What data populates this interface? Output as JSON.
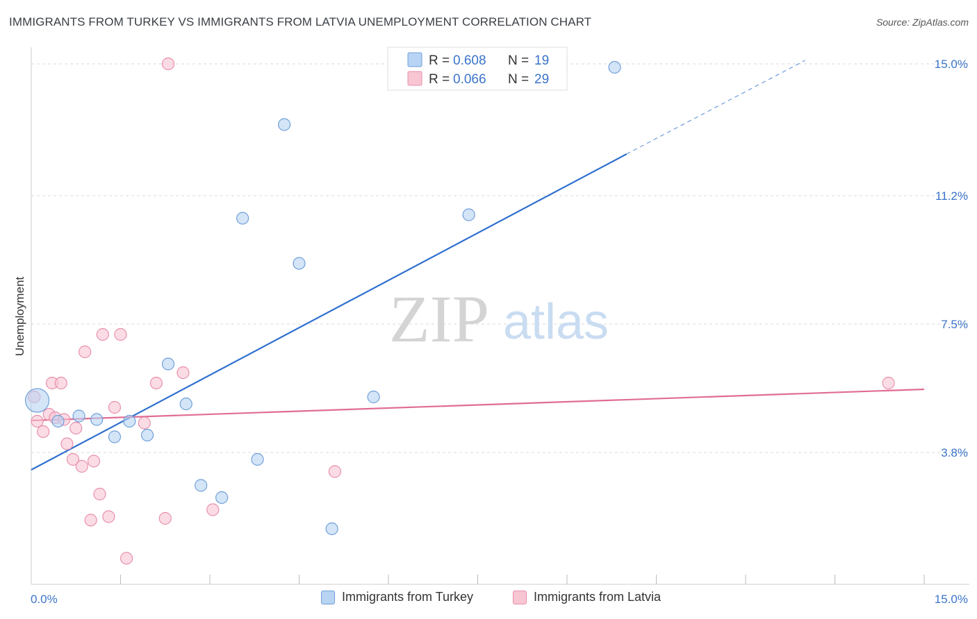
{
  "title": "IMMIGRANTS FROM TURKEY VS IMMIGRANTS FROM LATVIA UNEMPLOYMENT CORRELATION CHART",
  "source": "Source: ZipAtlas.com",
  "watermark": {
    "zip": "ZIP",
    "atlas": "atlas"
  },
  "colors": {
    "turkey_fill": "#b8d3f3",
    "turkey_stroke": "#6f9fd8",
    "turkey_line": "#2f6fcf",
    "latvia_fill": "#f8c5d3",
    "latvia_stroke": "#e88fab",
    "latvia_line": "#e06c94",
    "value_text": "#3b74c9",
    "grid": "#d9d9d9"
  },
  "legend_top": {
    "rows": [
      {
        "r_label": "R = ",
        "r_value": "0.608",
        "n_label": "N = ",
        "n_value": "19"
      },
      {
        "r_label": "R = ",
        "r_value": "0.066",
        "n_label": "N = ",
        "n_value": "29"
      }
    ]
  },
  "legend_bottom": [
    "Immigrants from Turkey",
    "Immigrants from Latvia"
  ],
  "chart_data": {
    "type": "scatter",
    "title": "IMMIGRANTS FROM TURKEY VS IMMIGRANTS FROM LATVIA UNEMPLOYMENT CORRELATION CHART",
    "xlabel": "",
    "ylabel": "Unemployment",
    "xlim": [
      0,
      15
    ],
    "ylim": [
      0,
      15.4
    ],
    "y_ticks": [
      3.8,
      7.5,
      11.2,
      15.0
    ],
    "y_tick_labels": [
      "3.8%",
      "7.5%",
      "11.2%",
      "15.0%"
    ],
    "x_tick_labels": [
      "0.0%",
      "15.0%"
    ],
    "x_minor_ticks": [
      1.5,
      3.0,
      4.5,
      6.0,
      7.5,
      9.0,
      10.5,
      12.0,
      13.5,
      15.0
    ],
    "grid": true,
    "series": [
      {
        "name": "Immigrants from Turkey",
        "r": 0.608,
        "n": 19,
        "points": [
          [
            0.1,
            5.3,
            "large"
          ],
          [
            0.45,
            4.7
          ],
          [
            0.8,
            4.85
          ],
          [
            1.1,
            4.75
          ],
          [
            1.4,
            4.25
          ],
          [
            1.65,
            4.7
          ],
          [
            1.95,
            4.3
          ],
          [
            2.3,
            6.35
          ],
          [
            2.6,
            5.2
          ],
          [
            2.85,
            2.85
          ],
          [
            3.2,
            2.5
          ],
          [
            3.55,
            10.55
          ],
          [
            3.8,
            3.6
          ],
          [
            4.25,
            13.25
          ],
          [
            4.5,
            9.25
          ],
          [
            5.05,
            1.6
          ],
          [
            5.75,
            5.4
          ],
          [
            7.35,
            10.65
          ],
          [
            9.8,
            14.9
          ]
        ],
        "trend": {
          "x0": 0.0,
          "y0": 3.3,
          "x1": 10.0,
          "y1": 12.4,
          "dashed_to_x": 13.0,
          "dashed_to_y": 15.1
        }
      },
      {
        "name": "Immigrants from Latvia",
        "r": 0.066,
        "n": 29,
        "points": [
          [
            0.05,
            5.4
          ],
          [
            0.1,
            4.7
          ],
          [
            0.2,
            4.4
          ],
          [
            0.3,
            4.9
          ],
          [
            0.35,
            5.8
          ],
          [
            0.4,
            4.8
          ],
          [
            0.5,
            5.8
          ],
          [
            0.55,
            4.75
          ],
          [
            0.6,
            4.05
          ],
          [
            0.7,
            3.6
          ],
          [
            0.75,
            4.5
          ],
          [
            0.85,
            3.4
          ],
          [
            0.9,
            6.7
          ],
          [
            1.0,
            1.85
          ],
          [
            1.05,
            3.55
          ],
          [
            1.15,
            2.6
          ],
          [
            1.2,
            7.2
          ],
          [
            1.3,
            1.95
          ],
          [
            1.4,
            5.1
          ],
          [
            1.5,
            7.2
          ],
          [
            1.6,
            0.75
          ],
          [
            1.9,
            4.65
          ],
          [
            2.1,
            5.8
          ],
          [
            2.25,
            1.9
          ],
          [
            2.3,
            15.0
          ],
          [
            2.55,
            6.1
          ],
          [
            3.05,
            2.15
          ],
          [
            5.1,
            3.25
          ],
          [
            14.4,
            5.8
          ]
        ],
        "trend": {
          "x0": 0.0,
          "y0": 4.72,
          "x1": 15.0,
          "y1": 5.62
        }
      }
    ]
  }
}
